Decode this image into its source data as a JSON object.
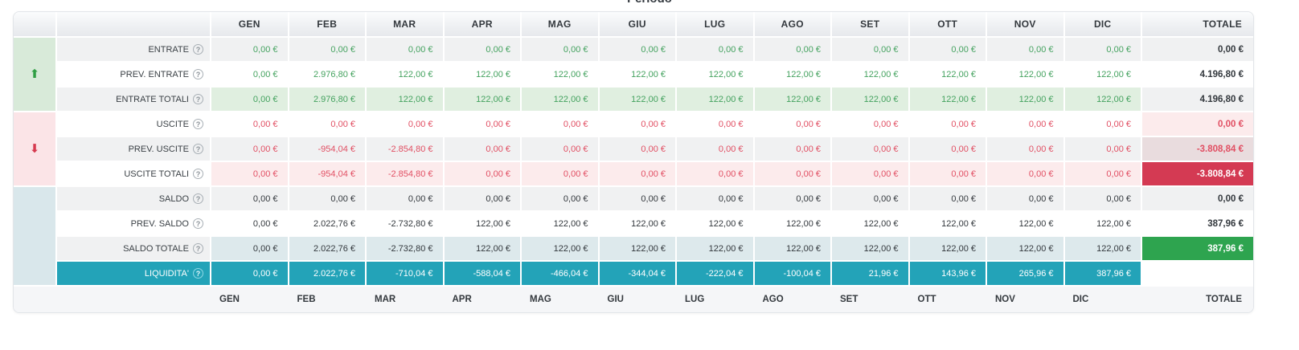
{
  "title": "Periodo",
  "columns": [
    "GEN",
    "FEB",
    "MAR",
    "APR",
    "MAG",
    "GIU",
    "LUG",
    "AGO",
    "SET",
    "OTT",
    "NOV",
    "DIC"
  ],
  "totale_label": "TOTALE",
  "help_glyph": "?",
  "colors": {
    "teal": "#23a3b8",
    "green_text": "#44a25f",
    "red_text": "#e14f63",
    "green_badge": "#2ea44f",
    "red_badge": "#d43a53",
    "entrate_group_bg": "#d8ead9",
    "uscite_group_bg": "#fbe4e7",
    "saldo_group_bg": "#d9e7eb"
  },
  "groups": [
    {
      "id": "entrate",
      "icon": "arrow-up-icon",
      "glyph": "⬆",
      "tone": "green",
      "span": 3
    },
    {
      "id": "uscite",
      "icon": "arrow-down-icon",
      "glyph": "⬇",
      "tone": "red",
      "span": 3
    },
    {
      "id": "saldo",
      "icon": null,
      "glyph": "",
      "tone": "blue",
      "span": 4
    }
  ],
  "rows": [
    {
      "id": "entrate",
      "label": "ENTRATE",
      "tone": "green",
      "bg": "stripe",
      "label_bg": "stripe",
      "values": [
        "0,00 €",
        "0,00 €",
        "0,00 €",
        "0,00 €",
        "0,00 €",
        "0,00 €",
        "0,00 €",
        "0,00 €",
        "0,00 €",
        "0,00 €",
        "0,00 €",
        "0,00 €"
      ],
      "total": "0,00 €",
      "total_bg": "stripe",
      "total_tone": "dark"
    },
    {
      "id": "prev-entrate",
      "label": "PREV. ENTRATE",
      "tone": "green",
      "bg": "white",
      "label_bg": "white",
      "values": [
        "0,00 €",
        "2.976,80 €",
        "122,00 €",
        "122,00 €",
        "122,00 €",
        "122,00 €",
        "122,00 €",
        "122,00 €",
        "122,00 €",
        "122,00 €",
        "122,00 €",
        "122,00 €"
      ],
      "total": "4.196,80 €",
      "total_bg": "white",
      "total_tone": "dark"
    },
    {
      "id": "entrate-totali",
      "label": "ENTRATE TOTALI",
      "tone": "green",
      "bg": "greenl",
      "label_bg": "stripe",
      "values": [
        "0,00 €",
        "2.976,80 €",
        "122,00 €",
        "122,00 €",
        "122,00 €",
        "122,00 €",
        "122,00 €",
        "122,00 €",
        "122,00 €",
        "122,00 €",
        "122,00 €",
        "122,00 €"
      ],
      "total": "4.196,80 €",
      "total_bg": "stripe",
      "total_tone": "dark"
    },
    {
      "id": "uscite",
      "label": "USCITE",
      "tone": "red",
      "bg": "white",
      "label_bg": "white",
      "values": [
        "0,00 €",
        "0,00 €",
        "0,00 €",
        "0,00 €",
        "0,00 €",
        "0,00 €",
        "0,00 €",
        "0,00 €",
        "0,00 €",
        "0,00 €",
        "0,00 €",
        "0,00 €"
      ],
      "total": "0,00 €",
      "total_bg": "pink",
      "total_tone": "red"
    },
    {
      "id": "prev-uscite",
      "label": "PREV. USCITE",
      "tone": "red",
      "bg": "stripe",
      "label_bg": "stripe",
      "values": [
        "0,00 €",
        "-954,04 €",
        "-2.854,80 €",
        "0,00 €",
        "0,00 €",
        "0,00 €",
        "0,00 €",
        "0,00 €",
        "0,00 €",
        "0,00 €",
        "0,00 €",
        "0,00 €"
      ],
      "total": "-3.808,84 €",
      "total_bg": "pinkmuted",
      "total_tone": "red"
    },
    {
      "id": "uscite-totali",
      "label": "USCITE TOTALI",
      "tone": "red",
      "bg": "pink",
      "label_bg": "white",
      "values": [
        "0,00 €",
        "-954,04 €",
        "-2.854,80 €",
        "0,00 €",
        "0,00 €",
        "0,00 €",
        "0,00 €",
        "0,00 €",
        "0,00 €",
        "0,00 €",
        "0,00 €",
        "0,00 €"
      ],
      "total": "-3.808,84 €",
      "total_bg": "red",
      "total_tone": "white"
    },
    {
      "id": "saldo",
      "label": "SALDO",
      "tone": "dark",
      "bg": "stripe",
      "label_bg": "stripe",
      "values": [
        "0,00 €",
        "0,00 €",
        "0,00 €",
        "0,00 €",
        "0,00 €",
        "0,00 €",
        "0,00 €",
        "0,00 €",
        "0,00 €",
        "0,00 €",
        "0,00 €",
        "0,00 €"
      ],
      "total": "0,00 €",
      "total_bg": "stripe",
      "total_tone": "dark"
    },
    {
      "id": "prev-saldo",
      "label": "PREV. SALDO",
      "tone": "dark",
      "bg": "white",
      "label_bg": "white",
      "values": [
        "0,00 €",
        "2.022,76 €",
        "-2.732,80 €",
        "122,00 €",
        "122,00 €",
        "122,00 €",
        "122,00 €",
        "122,00 €",
        "122,00 €",
        "122,00 €",
        "122,00 €",
        "122,00 €"
      ],
      "total": "387,96 €",
      "total_bg": "white",
      "total_tone": "dark"
    },
    {
      "id": "saldo-totale",
      "label": "SALDO TOTALE",
      "tone": "dark",
      "bg": "bluel",
      "label_bg": "stripe",
      "values": [
        "0,00 €",
        "2.022,76 €",
        "-2.732,80 €",
        "122,00 €",
        "122,00 €",
        "122,00 €",
        "122,00 €",
        "122,00 €",
        "122,00 €",
        "122,00 €",
        "122,00 €",
        "122,00 €"
      ],
      "total": "387,96 €",
      "total_bg": "green",
      "total_tone": "white"
    },
    {
      "id": "liquidita",
      "label": "LIQUIDITA'",
      "tone": "white",
      "bg": "teal",
      "label_bg": "teal",
      "values": [
        "0,00 €",
        "2.022,76 €",
        "-710,04 €",
        "-588,04 €",
        "-466,04 €",
        "-344,04 €",
        "-222,04 €",
        "-100,04 €",
        "21,96 €",
        "143,96 €",
        "265,96 €",
        "387,96 €"
      ],
      "total": "",
      "total_bg": "white",
      "total_tone": "dark"
    }
  ]
}
